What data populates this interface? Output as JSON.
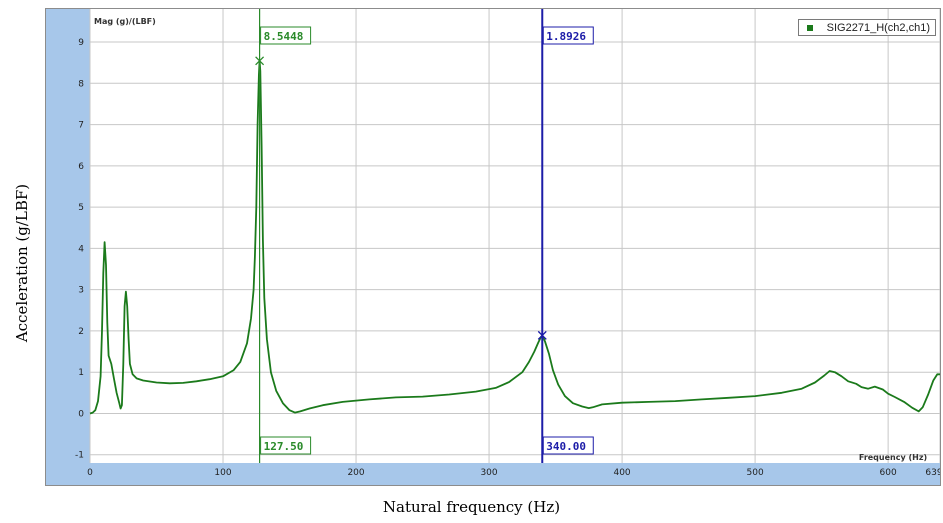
{
  "chart_data": {
    "type": "line",
    "xlabel": "Natural frequency (Hz)",
    "ylabel": "Acceleration (g/LBF)",
    "inner_ylabel": "Mag (g)/(LBF)",
    "inner_xlabel": "Frequency (Hz)",
    "xlim": [
      0,
      639
    ],
    "ylim": [
      -1.2,
      9.8
    ],
    "x_ticks": [
      "0",
      "100",
      "200",
      "300",
      "400",
      "500",
      "600",
      "639"
    ],
    "y_ticks": [
      "-1",
      "0",
      "1",
      "2",
      "3",
      "4",
      "5",
      "6",
      "7",
      "8",
      "9"
    ],
    "legend": {
      "position": "top-right",
      "label": "SIG2271_H(ch2,ch1)"
    },
    "series": [
      {
        "name": "SIG2271_H(ch2,ch1)",
        "color": "#1b7a1b",
        "points": [
          [
            0,
            0.0
          ],
          [
            2,
            0.02
          ],
          [
            4,
            0.08
          ],
          [
            6,
            0.3
          ],
          [
            8,
            0.9
          ],
          [
            9,
            2.0
          ],
          [
            10,
            3.4
          ],
          [
            11,
            4.15
          ],
          [
            12,
            3.6
          ],
          [
            13,
            2.2
          ],
          [
            14,
            1.4
          ],
          [
            16,
            1.2
          ],
          [
            18,
            0.85
          ],
          [
            20,
            0.5
          ],
          [
            22,
            0.25
          ],
          [
            23,
            0.12
          ],
          [
            24,
            0.2
          ],
          [
            25,
            1.2
          ],
          [
            26,
            2.6
          ],
          [
            27,
            2.95
          ],
          [
            28,
            2.6
          ],
          [
            29,
            1.8
          ],
          [
            30,
            1.2
          ],
          [
            32,
            0.95
          ],
          [
            35,
            0.85
          ],
          [
            40,
            0.8
          ],
          [
            50,
            0.75
          ],
          [
            60,
            0.73
          ],
          [
            70,
            0.74
          ],
          [
            80,
            0.78
          ],
          [
            90,
            0.83
          ],
          [
            100,
            0.9
          ],
          [
            108,
            1.05
          ],
          [
            113,
            1.25
          ],
          [
            118,
            1.7
          ],
          [
            121,
            2.3
          ],
          [
            123,
            3.0
          ],
          [
            124,
            3.8
          ],
          [
            125,
            5.0
          ],
          [
            126,
            7.0
          ],
          [
            127,
            8.2
          ],
          [
            127.5,
            8.55
          ],
          [
            128,
            8.3
          ],
          [
            129,
            6.5
          ],
          [
            130,
            4.2
          ],
          [
            131,
            2.8
          ],
          [
            133,
            1.8
          ],
          [
            136,
            1.0
          ],
          [
            140,
            0.55
          ],
          [
            145,
            0.25
          ],
          [
            150,
            0.08
          ],
          [
            154,
            0.02
          ],
          [
            158,
            0.05
          ],
          [
            165,
            0.12
          ],
          [
            175,
            0.2
          ],
          [
            190,
            0.28
          ],
          [
            210,
            0.34
          ],
          [
            230,
            0.39
          ],
          [
            250,
            0.41
          ],
          [
            270,
            0.46
          ],
          [
            290,
            0.53
          ],
          [
            305,
            0.62
          ],
          [
            315,
            0.76
          ],
          [
            325,
            1.0
          ],
          [
            330,
            1.25
          ],
          [
            334,
            1.5
          ],
          [
            337,
            1.72
          ],
          [
            339,
            1.85
          ],
          [
            340,
            1.89
          ],
          [
            342,
            1.75
          ],
          [
            345,
            1.45
          ],
          [
            348,
            1.05
          ],
          [
            352,
            0.7
          ],
          [
            357,
            0.42
          ],
          [
            363,
            0.25
          ],
          [
            370,
            0.17
          ],
          [
            375,
            0.13
          ],
          [
            378,
            0.15
          ],
          [
            385,
            0.22
          ],
          [
            400,
            0.26
          ],
          [
            420,
            0.28
          ],
          [
            440,
            0.3
          ],
          [
            460,
            0.34
          ],
          [
            480,
            0.38
          ],
          [
            500,
            0.42
          ],
          [
            520,
            0.5
          ],
          [
            535,
            0.6
          ],
          [
            545,
            0.75
          ],
          [
            552,
            0.92
          ],
          [
            556,
            1.03
          ],
          [
            560,
            1.0
          ],
          [
            565,
            0.9
          ],
          [
            570,
            0.78
          ],
          [
            576,
            0.72
          ],
          [
            580,
            0.64
          ],
          [
            585,
            0.6
          ],
          [
            590,
            0.65
          ],
          [
            596,
            0.58
          ],
          [
            600,
            0.48
          ],
          [
            605,
            0.4
          ],
          [
            612,
            0.28
          ],
          [
            618,
            0.14
          ],
          [
            623,
            0.05
          ],
          [
            626,
            0.15
          ],
          [
            630,
            0.45
          ],
          [
            634,
            0.8
          ],
          [
            637,
            0.95
          ],
          [
            639,
            0.95
          ]
        ]
      }
    ],
    "cursors": [
      {
        "x": 127.5,
        "y": 8.5448,
        "x_label": "127.50",
        "y_label": "8.5448",
        "color": "#2a8a2a"
      },
      {
        "x": 340.0,
        "y": 1.8926,
        "x_label": "340.00",
        "y_label": "1.8926",
        "color": "#1c1ca8"
      }
    ]
  },
  "colors": {
    "plot_background": "#ffffff",
    "axis_band": "#a7c7ea",
    "grid": "#c7c7c7"
  }
}
